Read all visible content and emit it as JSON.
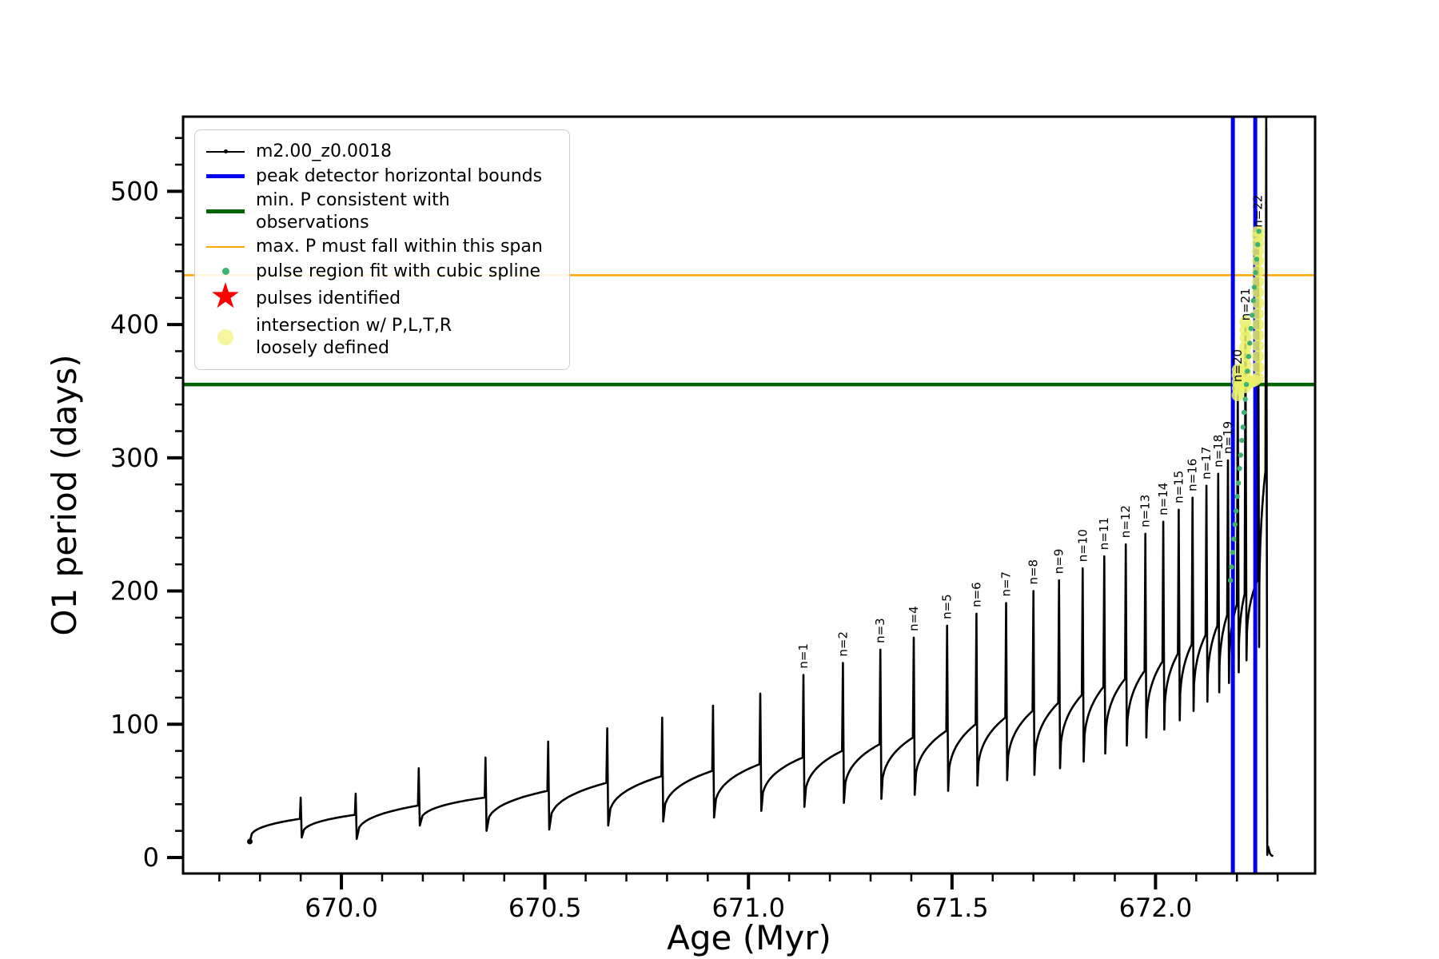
{
  "legend": {
    "items": [
      {
        "label": "m2.00_z0.0018",
        "marker": "black-line-with-dot",
        "color": "#000000"
      },
      {
        "label": "peak detector horizontal bounds",
        "marker": "thick-blue-line",
        "color": "#0000ee"
      },
      {
        "label": "min. P consistent with observations",
        "marker": "thick-green-line",
        "color": "#006400"
      },
      {
        "label": "max. P must fall within this span",
        "marker": "thin-orange-line",
        "color": "#ffa500"
      },
      {
        "label": "pulse region fit with cubic spline",
        "marker": "small-green-dot",
        "color": "#3cb371"
      },
      {
        "label": "pulses identified",
        "marker": "red-star",
        "color": "#ff0000"
      },
      {
        "label": "intersection w/ P,L,T,R\nloosely defined",
        "marker": "big-yellow-dot",
        "color": "#f6f6a0"
      }
    ]
  },
  "chart_data": {
    "type": "line",
    "title": "",
    "xlabel": "Age (Myr)",
    "ylabel": "O1 period (days)",
    "xlim": [
      669.611,
      672.392
    ],
    "ylim": [
      -12,
      556
    ],
    "x_major_ticks": [
      670.0,
      670.5,
      671.0,
      671.5,
      672.0
    ],
    "x_minor_step": 0.1,
    "y_major_ticks": [
      0,
      100,
      200,
      300,
      400,
      500
    ],
    "y_minor_step": 20,
    "grid": false,
    "legend_position": "upper-left",
    "series_name": "m2.00_z0.0018",
    "colors": {
      "series": "#000000",
      "peak_bounds": "#0000ee",
      "min_p_line": "#006400",
      "max_p_line": "#ffa500",
      "spline_dots": "#3cb371",
      "pulses": "#ff0000",
      "intersection_dots": "#eaf06a"
    },
    "track_start": {
      "x": 669.775,
      "v": 12
    },
    "cycles": [
      {
        "x": 669.9,
        "crest": 29,
        "peak": 45,
        "dip": 15,
        "label": ""
      },
      {
        "x": 670.035,
        "crest": 32,
        "peak": 48,
        "dip": 14,
        "label": ""
      },
      {
        "x": 670.19,
        "crest": 39,
        "peak": 67,
        "dip": 24,
        "label": ""
      },
      {
        "x": 670.354,
        "crest": 45,
        "peak": 75,
        "dip": 20,
        "label": ""
      },
      {
        "x": 670.508,
        "crest": 50,
        "peak": 87,
        "dip": 21,
        "label": ""
      },
      {
        "x": 670.653,
        "crest": 56,
        "peak": 97,
        "dip": 24,
        "label": ""
      },
      {
        "x": 670.788,
        "crest": 61,
        "peak": 105,
        "dip": 27,
        "label": ""
      },
      {
        "x": 670.913,
        "crest": 65,
        "peak": 114,
        "dip": 30,
        "label": ""
      },
      {
        "x": 671.029,
        "crest": 70,
        "peak": 123,
        "dip": 35,
        "label": ""
      },
      {
        "x": 671.135,
        "crest": 75,
        "peak": 137,
        "dip": 38,
        "label": "n=1"
      },
      {
        "x": 671.232,
        "crest": 80,
        "peak": 146,
        "dip": 41,
        "label": "n=2"
      },
      {
        "x": 671.324,
        "crest": 85,
        "peak": 156,
        "dip": 44,
        "label": "n=3"
      },
      {
        "x": 671.406,
        "crest": 90,
        "peak": 165,
        "dip": 47,
        "label": "n=4"
      },
      {
        "x": 671.488,
        "crest": 95,
        "peak": 174,
        "dip": 50,
        "label": "n=5"
      },
      {
        "x": 671.56,
        "crest": 100,
        "peak": 183,
        "dip": 54,
        "label": "n=6"
      },
      {
        "x": 671.633,
        "crest": 105,
        "peak": 191,
        "dip": 58,
        "label": "n=7"
      },
      {
        "x": 671.7,
        "crest": 110,
        "peak": 200,
        "dip": 62,
        "label": "n=8"
      },
      {
        "x": 671.763,
        "crest": 116,
        "peak": 208,
        "dip": 67,
        "label": "n=9"
      },
      {
        "x": 671.821,
        "crest": 122,
        "peak": 217,
        "dip": 72,
        "label": "n=10"
      },
      {
        "x": 671.874,
        "crest": 128,
        "peak": 226,
        "dip": 78,
        "label": "n=11"
      },
      {
        "x": 671.927,
        "crest": 134,
        "peak": 235,
        "dip": 84,
        "label": "n=12"
      },
      {
        "x": 671.975,
        "crest": 140,
        "peak": 243,
        "dip": 90,
        "label": "n=13"
      },
      {
        "x": 672.019,
        "crest": 147,
        "peak": 252,
        "dip": 96,
        "label": "n=14"
      },
      {
        "x": 672.057,
        "crest": 153,
        "peak": 261,
        "dip": 103,
        "label": "n=15"
      },
      {
        "x": 672.091,
        "crest": 160,
        "peak": 270,
        "dip": 110,
        "label": "n=16"
      },
      {
        "x": 672.125,
        "crest": 167,
        "peak": 279,
        "dip": 117,
        "label": "n=17"
      },
      {
        "x": 672.154,
        "crest": 174,
        "peak": 288,
        "dip": 124,
        "label": "n=18"
      },
      {
        "x": 672.178,
        "crest": 182,
        "peak": 298,
        "dip": 131,
        "label": "n=19"
      },
      {
        "x": 672.202,
        "crest": 190,
        "peak": 352,
        "dip": 139,
        "label": "n=20"
      },
      {
        "x": 672.221,
        "crest": 198,
        "peak": 398,
        "dip": 148,
        "label": "n=21"
      },
      {
        "x": 672.252,
        "crest": 208,
        "peak": 468,
        "dip": 158,
        "label": "n=22"
      },
      {
        "x": 672.272,
        "crest": 290,
        "peak": 556,
        "dip": 2,
        "label": ""
      }
    ],
    "tail": [
      [
        672.277,
        8
      ],
      [
        672.281,
        3
      ],
      [
        672.285,
        1.5
      ],
      [
        672.289,
        1
      ]
    ],
    "hlines": [
      {
        "y": 355,
        "color": "#006400",
        "width": 4.5,
        "name": "min-P-consistent-line"
      },
      {
        "y": 437,
        "color": "#ffa500",
        "width": 2.5,
        "name": "max-P-span-line"
      }
    ],
    "vlines": [
      {
        "x": 672.19,
        "color": "#0000ee",
        "width": 5,
        "name": "peak-detector-left-bound"
      },
      {
        "x": 672.245,
        "color": "#0000ee",
        "width": 5,
        "name": "peak-detector-right-bound"
      }
    ],
    "scatter_intersection": [
      [
        672.2015,
        347
      ],
      [
        672.2025,
        352
      ],
      [
        672.202,
        357
      ],
      [
        672.2018,
        362
      ],
      [
        672.2022,
        366
      ],
      [
        672.2205,
        353
      ],
      [
        672.2215,
        358
      ],
      [
        672.2208,
        364
      ],
      [
        672.2212,
        370
      ],
      [
        672.221,
        377
      ],
      [
        672.2205,
        383
      ],
      [
        672.2215,
        390
      ],
      [
        672.221,
        396
      ],
      [
        672.2208,
        402
      ],
      [
        672.2515,
        360
      ],
      [
        672.2525,
        368
      ],
      [
        672.252,
        376
      ],
      [
        672.2518,
        384
      ],
      [
        672.2522,
        392
      ],
      [
        672.252,
        400
      ],
      [
        672.2515,
        408
      ],
      [
        672.2525,
        416
      ],
      [
        672.252,
        424
      ],
      [
        672.2518,
        432
      ],
      [
        672.2522,
        440
      ],
      [
        672.252,
        448
      ],
      [
        672.2515,
        455
      ],
      [
        672.2523,
        461
      ],
      [
        672.252,
        466
      ],
      [
        672.2521,
        470
      ],
      [
        672.207,
        355
      ],
      [
        672.215,
        356
      ],
      [
        672.228,
        356
      ],
      [
        672.236,
        357
      ],
      [
        672.244,
        358
      ]
    ],
    "scatter_spline": [
      [
        672.184,
        208
      ],
      [
        672.1868,
        218
      ],
      [
        672.1896,
        229
      ],
      [
        672.1924,
        239
      ],
      [
        672.1952,
        250
      ],
      [
        672.198,
        260
      ],
      [
        672.2008,
        271
      ],
      [
        672.2036,
        281
      ],
      [
        672.2064,
        292
      ],
      [
        672.2092,
        302
      ],
      [
        672.212,
        313
      ],
      [
        672.2148,
        323
      ],
      [
        672.2176,
        334
      ],
      [
        672.2204,
        344
      ],
      [
        672.2232,
        355
      ],
      [
        672.226,
        365
      ],
      [
        672.2288,
        376
      ],
      [
        672.2316,
        386
      ],
      [
        672.2344,
        397
      ],
      [
        672.2372,
        407
      ],
      [
        672.24,
        418
      ],
      [
        672.2428,
        428
      ],
      [
        672.2456,
        439
      ],
      [
        672.2484,
        449
      ],
      [
        672.2512,
        460
      ],
      [
        672.254,
        470
      ]
    ]
  }
}
